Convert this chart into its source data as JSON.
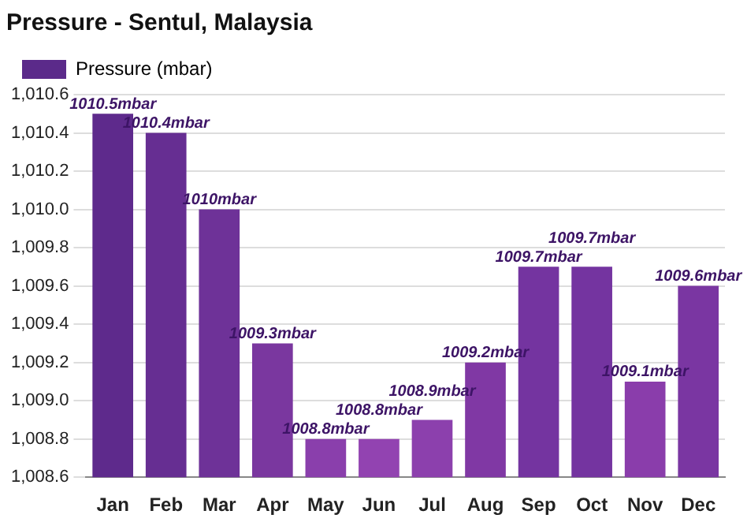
{
  "chart_data": {
    "type": "bar",
    "title": "Pressure - Sentul, Malaysia",
    "categories": [
      "Jan",
      "Feb",
      "Mar",
      "Apr",
      "May",
      "Jun",
      "Jul",
      "Aug",
      "Sep",
      "Oct",
      "Nov",
      "Dec"
    ],
    "series": [
      {
        "name": "Pressure (mbar)",
        "color": "#5b2a8a",
        "colors": [
          "#5e2a8c",
          "#662e92",
          "#6e3298",
          "#7a379f",
          "#8a3fac",
          "#9243b1",
          "#8c40ad",
          "#8038a4",
          "#7434a0",
          "#7434a0",
          "#8a3dab",
          "#7a36a2"
        ],
        "values": [
          1010.5,
          1010.4,
          1010.0,
          1009.3,
          1008.8,
          1008.8,
          1008.9,
          1009.2,
          1009.7,
          1009.7,
          1009.1,
          1009.6
        ],
        "value_labels": [
          "1010.5mbar",
          "1010.4mbar",
          "1010mbar",
          "1009.3mbar",
          "1008.8mbar",
          "1008.8mbar",
          "1008.9mbar",
          "1009.2mbar",
          "1009.7mbar",
          "1009.7mbar",
          "1009.1mbar",
          "1009.6mbar"
        ]
      }
    ],
    "ylim": [
      1008.6,
      1010.6
    ],
    "yticks": [
      {
        "value": 1008.6,
        "label": "1,008.6"
      },
      {
        "value": 1008.8,
        "label": "1,008.8"
      },
      {
        "value": 1009.0,
        "label": "1,009.0"
      },
      {
        "value": 1009.2,
        "label": "1,009.2"
      },
      {
        "value": 1009.4,
        "label": "1,009.4"
      },
      {
        "value": 1009.6,
        "label": "1,009.6"
      },
      {
        "value": 1009.8,
        "label": "1,009.8"
      },
      {
        "value": 1010.0,
        "label": "1,010.0"
      },
      {
        "value": 1010.2,
        "label": "1,010.2"
      },
      {
        "value": 1010.4,
        "label": "1,010.4"
      },
      {
        "value": 1010.6,
        "label": "1,010.6"
      }
    ],
    "grid": "y",
    "legend": "top left"
  }
}
